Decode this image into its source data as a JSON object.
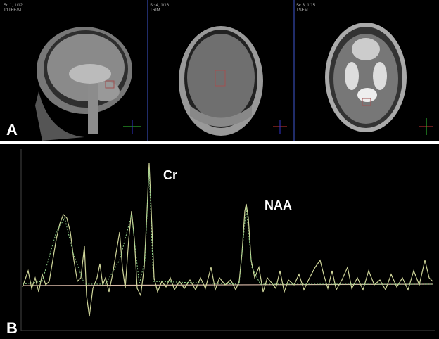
{
  "panel_a": {
    "label": "A",
    "views": [
      {
        "series": "Sc 1, 1/12",
        "sequence": "T1TFE/M"
      },
      {
        "series": "Sc 4, 1/16",
        "sequence": "TRIM"
      },
      {
        "series": "Sc 3, 1/15",
        "sequence": "TSEM"
      }
    ]
  },
  "panel_b": {
    "label": "B",
    "peaks": [
      "Cr",
      "NAA"
    ]
  }
}
